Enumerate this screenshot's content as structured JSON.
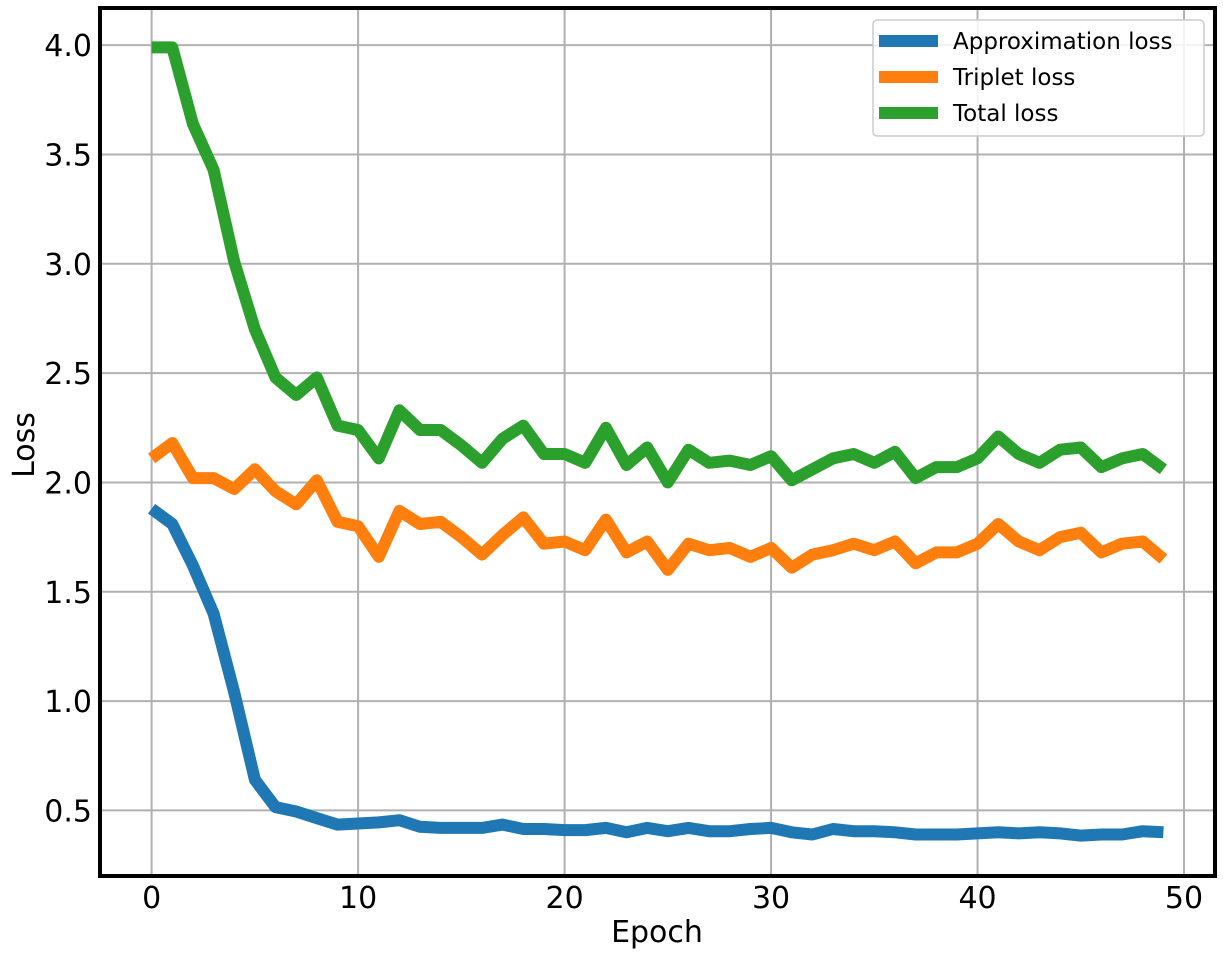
{
  "chart_data": {
    "type": "line",
    "title": "",
    "xlabel": "Epoch",
    "ylabel": "Loss",
    "xlim": [
      -2.5,
      51.5
    ],
    "ylim": [
      0.2,
      4.17
    ],
    "x_ticks": [
      0,
      10,
      20,
      30,
      40,
      50
    ],
    "x_tick_labels": [
      "0",
      "10",
      "20",
      "30",
      "40",
      "50"
    ],
    "y_ticks": [
      0.5,
      1.0,
      1.5,
      2.0,
      2.5,
      3.0,
      3.5,
      4.0
    ],
    "y_tick_labels": [
      "0.5",
      "1.0",
      "1.5",
      "2.0",
      "2.5",
      "3.0",
      "3.5",
      "4.0"
    ],
    "grid": true,
    "legend_position": "top-right",
    "x": [
      0,
      1,
      2,
      3,
      4,
      5,
      6,
      7,
      8,
      9,
      10,
      11,
      12,
      13,
      14,
      15,
      16,
      17,
      18,
      19,
      20,
      21,
      22,
      23,
      24,
      25,
      26,
      27,
      28,
      29,
      30,
      31,
      32,
      33,
      34,
      35,
      36,
      37,
      38,
      39,
      40,
      41,
      42,
      43,
      44,
      45,
      46,
      47,
      48,
      49
    ],
    "series": [
      {
        "name": "Approximation loss",
        "color": "#1f77b4",
        "values": [
          1.88,
          1.81,
          1.62,
          1.4,
          1.04,
          0.64,
          0.515,
          0.495,
          0.465,
          0.435,
          0.44,
          0.445,
          0.455,
          0.425,
          0.42,
          0.42,
          0.42,
          0.435,
          0.415,
          0.415,
          0.41,
          0.41,
          0.42,
          0.4,
          0.42,
          0.405,
          0.42,
          0.405,
          0.405,
          0.415,
          0.42,
          0.4,
          0.39,
          0.415,
          0.405,
          0.405,
          0.4,
          0.39,
          0.39,
          0.39,
          0.395,
          0.4,
          0.395,
          0.4,
          0.395,
          0.385,
          0.39,
          0.39,
          0.405,
          0.4
        ]
      },
      {
        "name": "Triplet loss",
        "color": "#ff7f0e",
        "values": [
          2.11,
          2.18,
          2.02,
          2.02,
          1.97,
          2.06,
          1.96,
          1.9,
          2.01,
          1.82,
          1.8,
          1.66,
          1.87,
          1.81,
          1.82,
          1.75,
          1.67,
          1.76,
          1.84,
          1.72,
          1.73,
          1.69,
          1.83,
          1.68,
          1.73,
          1.6,
          1.72,
          1.69,
          1.7,
          1.66,
          1.7,
          1.61,
          1.67,
          1.69,
          1.72,
          1.69,
          1.73,
          1.63,
          1.68,
          1.68,
          1.72,
          1.81,
          1.73,
          1.69,
          1.75,
          1.77,
          1.68,
          1.72,
          1.73,
          1.65
        ]
      },
      {
        "name": "Total loss",
        "color": "#2ca02c",
        "values": [
          3.99,
          3.99,
          3.64,
          3.43,
          3.01,
          2.7,
          2.48,
          2.4,
          2.48,
          2.26,
          2.24,
          2.11,
          2.33,
          2.24,
          2.24,
          2.17,
          2.09,
          2.2,
          2.26,
          2.13,
          2.13,
          2.09,
          2.25,
          2.08,
          2.16,
          2.0,
          2.15,
          2.09,
          2.1,
          2.08,
          2.12,
          2.01,
          2.06,
          2.11,
          2.13,
          2.09,
          2.14,
          2.02,
          2.07,
          2.07,
          2.11,
          2.21,
          2.13,
          2.09,
          2.15,
          2.16,
          2.07,
          2.11,
          2.13,
          2.06
        ]
      }
    ]
  }
}
